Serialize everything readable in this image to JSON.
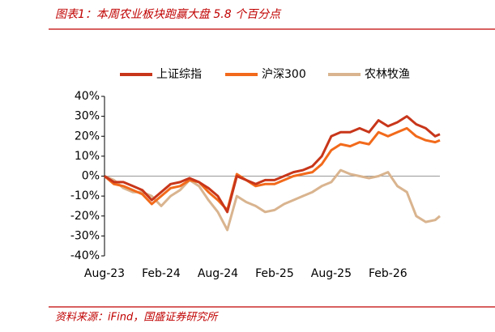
{
  "chart_data": {
    "type": "line",
    "title": "图表1：本周农业板块跑赢大盘 5.8 个百分点",
    "source": "资料来源：iFind，国盛证券研究所",
    "x": [
      0,
      1,
      2,
      3,
      4,
      5,
      6,
      7,
      8,
      9,
      10,
      11,
      12,
      13,
      14,
      15,
      16,
      17,
      18,
      19,
      20,
      21,
      22,
      23,
      24,
      25,
      26,
      27,
      28,
      29,
      30,
      31,
      32,
      33,
      34,
      35,
      35.5
    ],
    "series": [
      {
        "name": "上证综指",
        "color": "#c8361a",
        "values": [
          0,
          -3,
          -3,
          -5,
          -7,
          -12,
          -8,
          -4,
          -3,
          -1,
          -3,
          -6,
          -10,
          -18,
          0,
          -2,
          -4,
          -2,
          -2,
          0,
          2,
          3,
          5,
          10,
          20,
          22,
          22,
          24,
          22,
          28,
          25,
          27,
          30,
          26,
          24,
          20,
          21
        ]
      },
      {
        "name": "沪深300",
        "color": "#f26a1b",
        "values": [
          0,
          -4,
          -5,
          -7,
          -9,
          -14,
          -10,
          -6,
          -5,
          -2,
          -3,
          -8,
          -12,
          -17,
          1,
          -2,
          -5,
          -4,
          -4,
          -2,
          0,
          1,
          2,
          6,
          13,
          16,
          15,
          17,
          16,
          22,
          20,
          22,
          24,
          20,
          18,
          17,
          18
        ]
      },
      {
        "name": "农林牧渔",
        "color": "#d9b48f",
        "values": [
          0,
          -2,
          -6,
          -8,
          -8,
          -10,
          -15,
          -10,
          -7,
          -2,
          -5,
          -12,
          -18,
          -27,
          -10,
          -13,
          -15,
          -18,
          -17,
          -14,
          -12,
          -10,
          -8,
          -5,
          -3,
          3,
          1,
          0,
          -1,
          0,
          2,
          -5,
          -8,
          -20,
          -23,
          -22,
          -20
        ]
      }
    ],
    "xlim": [
      0,
      35.5
    ],
    "xticks": [
      {
        "value": 0,
        "label": "Aug-23"
      },
      {
        "value": 6,
        "label": "Feb-24"
      },
      {
        "value": 12,
        "label": "Aug-24"
      },
      {
        "value": 18,
        "label": "Feb-25"
      },
      {
        "value": 24,
        "label": "Aug-25"
      },
      {
        "value": 30,
        "label": "Feb-26"
      }
    ],
    "ylim": [
      -40,
      40
    ],
    "yticks": [
      {
        "value": 40,
        "label": "40%"
      },
      {
        "value": 30,
        "label": "30%"
      },
      {
        "value": 20,
        "label": "20%"
      },
      {
        "value": 10,
        "label": "10%"
      },
      {
        "value": 0,
        "label": "0%"
      },
      {
        "value": -10,
        "label": "-10%"
      },
      {
        "value": -20,
        "label": "-20%"
      },
      {
        "value": -30,
        "label": "-30%"
      },
      {
        "value": -40,
        "label": "-40%"
      }
    ],
    "grid": false,
    "legend": "top"
  }
}
